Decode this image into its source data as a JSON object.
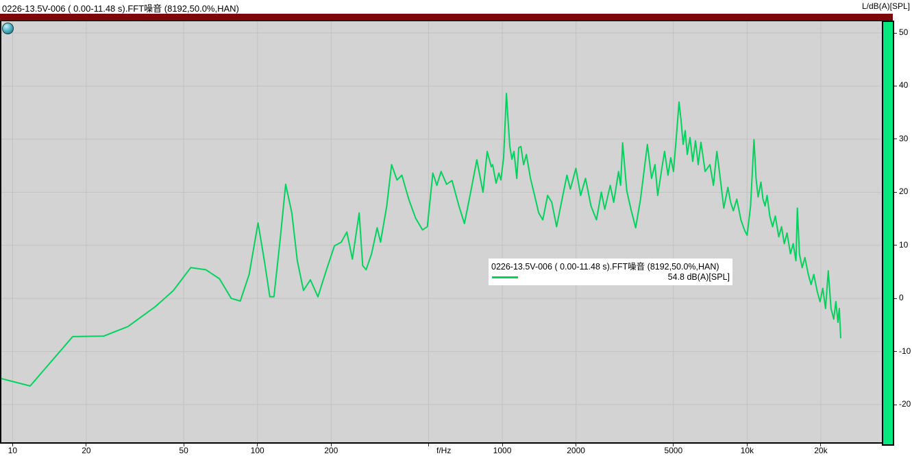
{
  "window": {
    "title": "0226-13.5V-006 ( 0.00-11.48 s).FFT噪音 (8192,50.0%,HAN)",
    "unit_label": "L/dB(A)[SPL]"
  },
  "legend": {
    "line1": "0226-13.5V-006 ( 0.00-11.48 s).FFT噪音 (8192,50.0%,HAN)",
    "value": "54.8 dB(A)[SPL]"
  },
  "colors": {
    "titlebar_red": "#7d0708",
    "plot_bg": "#d3d3d3",
    "gridline": "#c2c2c2",
    "curve_green": "#00d25e",
    "colorbar_green": "#00e87e"
  },
  "chart_data": {
    "type": "line",
    "title": "0226-13.5V-006 ( 0.00-11.48 s).FFT噪音 (8192,50.0%,HAN)",
    "xlabel": "f/Hz",
    "ylabel": "L/dB(A)[SPL]",
    "x_scale": "log",
    "grid": true,
    "xlim": [
      9,
      35500
    ],
    "ylim": [
      -27.1,
      52.2
    ],
    "y_ticks": [
      50,
      40,
      30,
      20,
      10,
      0,
      -10,
      -20
    ],
    "x_gridlines": [
      10,
      20,
      50,
      100,
      200,
      500,
      1000,
      2000,
      5000,
      10000,
      20000
    ],
    "x_tick_labels": [
      {
        "f": 10,
        "label": "10"
      },
      {
        "f": 20,
        "label": "20"
      },
      {
        "f": 50,
        "label": "50"
      },
      {
        "f": 100,
        "label": "100"
      },
      {
        "f": 200,
        "label": "200"
      },
      {
        "f": 577,
        "label": "f/Hz"
      },
      {
        "f": 1000,
        "label": "1000"
      },
      {
        "f": 2000,
        "label": "2000"
      },
      {
        "f": 5000,
        "label": "5000"
      },
      {
        "f": 10000,
        "label": "10k"
      },
      {
        "f": 20000,
        "label": "20k"
      }
    ],
    "overall_level": "54.8 dB(A)[SPL]",
    "series": [
      {
        "name": "0226-13.5V-006 ( 0.00-11.48 s).FFT噪音 (8192,50.0%,HAN)",
        "points": [
          [
            9.0,
            -15.1
          ],
          [
            11.8,
            -16.5
          ],
          [
            17.6,
            -7.2
          ],
          [
            23.6,
            -7.1
          ],
          [
            29.6,
            -5.3
          ],
          [
            38.4,
            -1.5
          ],
          [
            45.4,
            1.5
          ],
          [
            53.4,
            5.8
          ],
          [
            61.6,
            5.4
          ],
          [
            70.0,
            3.7
          ],
          [
            78.2,
            0.0
          ],
          [
            85.1,
            -0.5
          ],
          [
            92.5,
            4.5
          ],
          [
            100.6,
            14.2
          ],
          [
            106.7,
            7.1
          ],
          [
            112.4,
            0.3
          ],
          [
            116.8,
            0.3
          ],
          [
            123.8,
            11.0
          ],
          [
            130.4,
            21.5
          ],
          [
            138.2,
            16.1
          ],
          [
            145.5,
            7.1
          ],
          [
            154.2,
            1.5
          ],
          [
            164.6,
            3.5
          ],
          [
            176.7,
            0.3
          ],
          [
            190.9,
            5.2
          ],
          [
            206.3,
            9.9
          ],
          [
            220.1,
            10.6
          ],
          [
            231.8,
            12.5
          ],
          [
            244.2,
            7.4
          ],
          [
            260.4,
            16.1
          ],
          [
            269.0,
            6.2
          ],
          [
            277.8,
            5.4
          ],
          [
            292.6,
            8.4
          ],
          [
            308.2,
            13.3
          ],
          [
            318.3,
            10.6
          ],
          [
            337.4,
            17.4
          ],
          [
            353.1,
            25.2
          ],
          [
            371.7,
            22.3
          ],
          [
            389.0,
            23.2
          ],
          [
            414.9,
            18.7
          ],
          [
            442.7,
            15.1
          ],
          [
            472.3,
            12.9
          ],
          [
            494.2,
            13.5
          ],
          [
            520.4,
            23.6
          ],
          [
            540.8,
            21.3
          ],
          [
            562.3,
            23.9
          ],
          [
            592.1,
            21.5
          ],
          [
            623.5,
            22.2
          ],
          [
            665.4,
            17.4
          ],
          [
            700.6,
            14.1
          ],
          [
            742.7,
            20.0
          ],
          [
            787.4,
            26.1
          ],
          [
            834.3,
            20.0
          ],
          [
            867.4,
            27.7
          ],
          [
            901.8,
            24.8
          ],
          [
            913.5,
            25.2
          ],
          [
            943.3,
            21.7
          ],
          [
            968.3,
            23.6
          ],
          [
            987.2,
            22.3
          ],
          [
            1013,
            26.5
          ],
          [
            1040,
            38.6
          ],
          [
            1060,
            32.3
          ],
          [
            1074,
            28.6
          ],
          [
            1095,
            26.2
          ],
          [
            1116,
            27.7
          ],
          [
            1146,
            22.6
          ],
          [
            1168,
            28.4
          ],
          [
            1191,
            28.6
          ],
          [
            1222,
            25.2
          ],
          [
            1254,
            27.1
          ],
          [
            1304,
            22.6
          ],
          [
            1355,
            19.4
          ],
          [
            1409,
            16.1
          ],
          [
            1464,
            14.8
          ],
          [
            1532,
            19.4
          ],
          [
            1593,
            18.1
          ],
          [
            1667,
            13.5
          ],
          [
            1755,
            18.7
          ],
          [
            1837,
            23.2
          ],
          [
            1897,
            20.6
          ],
          [
            1998,
            24.5
          ],
          [
            2090,
            19.4
          ],
          [
            2187,
            22.6
          ],
          [
            2303,
            17.4
          ],
          [
            2425,
            14.8
          ],
          [
            2538,
            20.0
          ],
          [
            2621,
            16.8
          ],
          [
            2761,
            21.3
          ],
          [
            2852,
            18.1
          ],
          [
            2984,
            23.9
          ],
          [
            3042,
            21.3
          ],
          [
            3102,
            29.3
          ],
          [
            3224,
            20.3
          ],
          [
            3352,
            16.8
          ],
          [
            3506,
            13.3
          ],
          [
            3670,
            18.7
          ],
          [
            3914,
            29.0
          ],
          [
            4071,
            22.6
          ],
          [
            4204,
            25.2
          ],
          [
            4314,
            19.4
          ],
          [
            4485,
            24.5
          ],
          [
            4601,
            27.7
          ],
          [
            4752,
            23.2
          ],
          [
            4876,
            26.5
          ],
          [
            5003,
            23.9
          ],
          [
            5136,
            30.3
          ],
          [
            5270,
            37.0
          ],
          [
            5373,
            33.5
          ],
          [
            5479,
            29.0
          ],
          [
            5586,
            31.6
          ],
          [
            5694,
            27.1
          ],
          [
            5844,
            30.3
          ],
          [
            5996,
            25.8
          ],
          [
            6153,
            29.7
          ],
          [
            6314,
            25.2
          ],
          [
            6479,
            29.4
          ],
          [
            6736,
            23.9
          ],
          [
            7050,
            25.2
          ],
          [
            7283,
            21.3
          ],
          [
            7523,
            27.7
          ],
          [
            7770,
            22.6
          ],
          [
            8026,
            17.0
          ],
          [
            8343,
            20.9
          ],
          [
            8562,
            18.1
          ],
          [
            8785,
            16.5
          ],
          [
            9075,
            18.7
          ],
          [
            9434,
            14.8
          ],
          [
            9745,
            12.9
          ],
          [
            10000,
            11.9
          ],
          [
            10329,
            17.4
          ],
          [
            10668,
            29.9
          ],
          [
            10877,
            22.6
          ],
          [
            11090,
            19.1
          ],
          [
            11382,
            21.9
          ],
          [
            11603,
            18.7
          ],
          [
            11830,
            17.4
          ],
          [
            12062,
            19.4
          ],
          [
            12378,
            15.5
          ],
          [
            12702,
            13.5
          ],
          [
            13035,
            15.5
          ],
          [
            13465,
            11.6
          ],
          [
            13817,
            13.5
          ],
          [
            14180,
            10.3
          ],
          [
            14551,
            12.3
          ],
          [
            15031,
            8.4
          ],
          [
            15424,
            10.3
          ],
          [
            15828,
            7.1
          ],
          [
            16035,
            17.0
          ],
          [
            16350,
            8.4
          ],
          [
            16778,
            5.8
          ],
          [
            17217,
            7.7
          ],
          [
            17783,
            4.5
          ],
          [
            18248,
            2.6
          ],
          [
            18726,
            4.5
          ],
          [
            19340,
            1.3
          ],
          [
            19846,
            -0.6
          ],
          [
            20370,
            1.9
          ],
          [
            20902,
            -1.9
          ],
          [
            21453,
            5.2
          ],
          [
            22013,
            -1.9
          ],
          [
            22588,
            -3.9
          ],
          [
            23032,
            -0.6
          ],
          [
            23482,
            -4.5
          ],
          [
            23788,
            -1.9
          ],
          [
            24099,
            -7.4
          ]
        ]
      }
    ]
  }
}
